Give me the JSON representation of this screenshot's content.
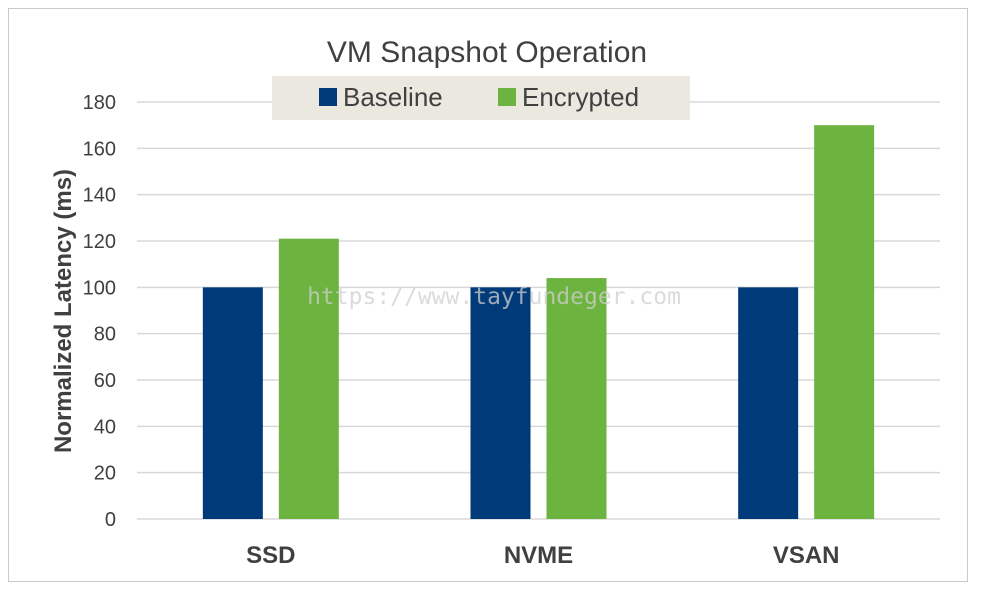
{
  "chart_data": {
    "type": "bar",
    "title": "VM Snapshot Operation",
    "xlabel": "",
    "ylabel": "Normalized Latency (ms)",
    "categories": [
      "SSD",
      "NVME",
      "VSAN"
    ],
    "series": [
      {
        "name": "Baseline",
        "color": "#003a78",
        "values": [
          100,
          100,
          100
        ]
      },
      {
        "name": "Encrypted",
        "color": "#6cb33f",
        "values": [
          121,
          104,
          170
        ]
      }
    ],
    "ylim": [
      0,
      180
    ],
    "yticks": [
      0,
      20,
      40,
      60,
      80,
      100,
      120,
      140,
      160,
      180
    ],
    "grid": true,
    "legend_position": "top-center",
    "legend_background": "#ebe9df"
  },
  "watermark": "https://www.tayfundeger.com"
}
